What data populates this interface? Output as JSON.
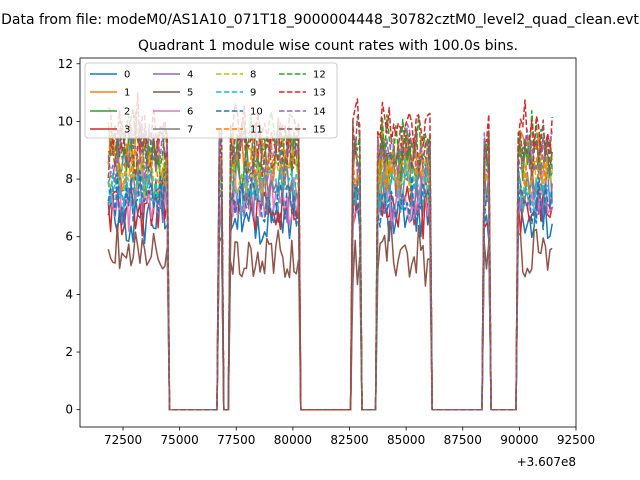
{
  "page": {
    "title": "Data from file: modeM0/AS1A10_071T18_9000004448_30782cztM0_level2_quad_clean.evt"
  },
  "chart_data": {
    "type": "line",
    "title": "Quadrant 1 module wise count rates with 100.0s bins.",
    "xlabel": "",
    "ylabel": "",
    "x_offset": 360700000,
    "x_offset_label": "+3.607e8",
    "xlim": [
      70600,
      92500
    ],
    "ylim": [
      -0.6,
      12.2
    ],
    "x_ticks": [
      72500,
      75000,
      77500,
      80000,
      82500,
      85000,
      87500,
      90000,
      92500
    ],
    "x_tick_labels": [
      "72500",
      "75000",
      "77500",
      "80000",
      "82500",
      "85000",
      "87500",
      "90000",
      "92500"
    ],
    "y_ticks": [
      0,
      2,
      4,
      6,
      8,
      10,
      12
    ],
    "y_tick_labels": [
      "0",
      "2",
      "4",
      "6",
      "8",
      "10",
      "12"
    ],
    "grid": false,
    "legend": {
      "placement": "top-left",
      "columns": 4
    },
    "segments": [
      {
        "start": 71850,
        "end": 74450
      },
      {
        "start": 76750,
        "end": 76850
      },
      {
        "start": 77250,
        "end": 80250
      },
      {
        "start": 82650,
        "end": 82950
      },
      {
        "start": 83750,
        "end": 86050
      },
      {
        "start": 88450,
        "end": 88650
      },
      {
        "start": 89950,
        "end": 91450
      }
    ],
    "bin_width": 100,
    "series": [
      {
        "name": "0",
        "color": "#1f77b4",
        "dash": "solid",
        "mean": 6.7
      },
      {
        "name": "1",
        "color": "#ff7f0e",
        "dash": "solid",
        "mean": 8.9
      },
      {
        "name": "2",
        "color": "#2ca02c",
        "dash": "solid",
        "mean": 8.5
      },
      {
        "name": "3",
        "color": "#d62728",
        "dash": "solid",
        "mean": 7.0
      },
      {
        "name": "4",
        "color": "#9467bd",
        "dash": "solid",
        "mean": 7.4
      },
      {
        "name": "5",
        "color": "#8c564b",
        "dash": "solid",
        "mean": 5.4
      },
      {
        "name": "6",
        "color": "#e377c2",
        "dash": "solid",
        "mean": 7.3
      },
      {
        "name": "7",
        "color": "#7f7f7f",
        "dash": "solid",
        "mean": 7.9
      },
      {
        "name": "8",
        "color": "#bcbd22",
        "dash": "dashed",
        "mean": 8.1
      },
      {
        "name": "9",
        "color": "#17becf",
        "dash": "dashed",
        "mean": 7.7
      },
      {
        "name": "10",
        "color": "#1f77b4",
        "dash": "dashed",
        "mean": 7.2
      },
      {
        "name": "11",
        "color": "#ff7f0e",
        "dash": "dashed",
        "mean": 8.6
      },
      {
        "name": "12",
        "color": "#2ca02c",
        "dash": "dashed",
        "mean": 9.3
      },
      {
        "name": "13",
        "color": "#d62728",
        "dash": "dashed",
        "mean": 9.8
      },
      {
        "name": "14",
        "color": "#9467bd",
        "dash": "dashed",
        "mean": 8.8
      },
      {
        "name": "15",
        "color": "#8c564b",
        "dash": "dashed",
        "mean": 9.1
      }
    ]
  }
}
